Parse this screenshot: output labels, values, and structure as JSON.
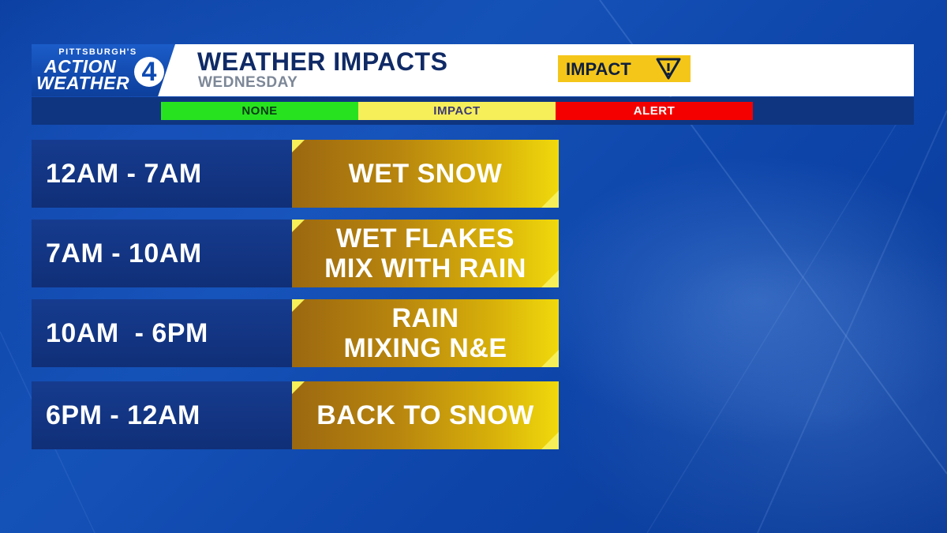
{
  "logo": {
    "small_text": "PITTSBURGH'S",
    "line1": "ACTION",
    "line2": "WEATHER",
    "channel": "4"
  },
  "header": {
    "title": "WEATHER IMPACTS",
    "subtitle": "WEDNESDAY",
    "badge_label": "IMPACT",
    "badge_icon": "warning-triangle-icon",
    "badge_color": "#f5c61a"
  },
  "scale": {
    "none": "NONE",
    "impact": "IMPACT",
    "alert": "ALERT",
    "colors": {
      "none": "#27e31f",
      "impact": "#f6ef5a",
      "alert": "#f40000"
    }
  },
  "rows": [
    {
      "time": "12AM - 7AM",
      "condition": [
        "WET SNOW"
      ]
    },
    {
      "time": "7AM - 10AM",
      "condition": [
        "WET FLAKES",
        "MIX WITH RAIN"
      ]
    },
    {
      "time": "10AM  - 6PM",
      "condition": [
        "RAIN",
        "MIXING N&E"
      ]
    },
    {
      "time": "6PM - 12AM",
      "condition": [
        "BACK TO SNOW"
      ]
    }
  ]
}
